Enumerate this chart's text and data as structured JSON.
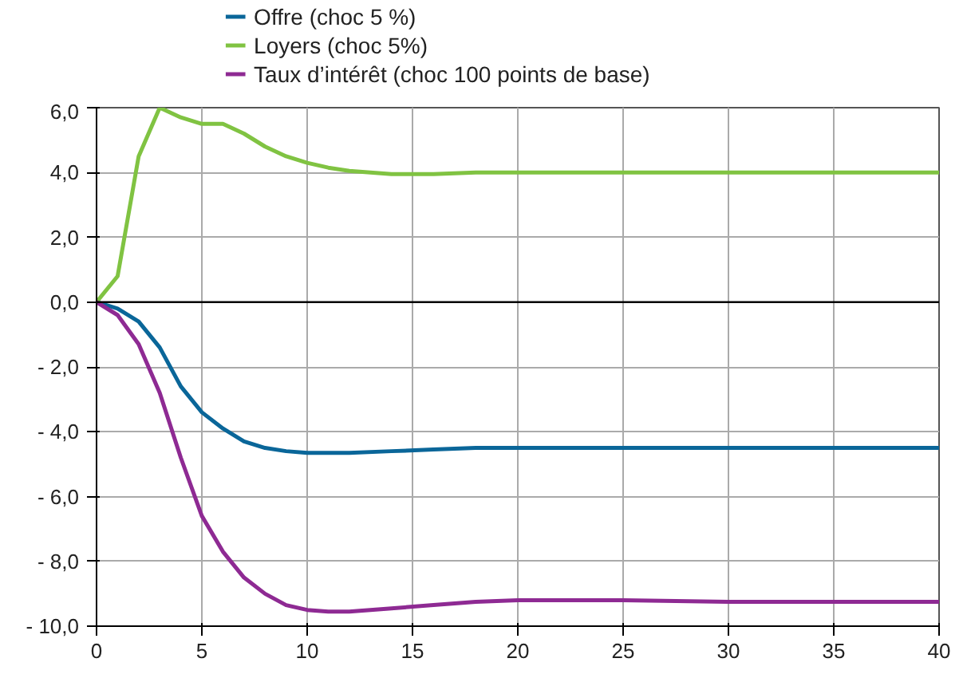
{
  "chart_data": {
    "type": "line",
    "x": [
      0,
      1,
      2,
      3,
      4,
      5,
      6,
      7,
      8,
      9,
      10,
      11,
      12,
      14,
      16,
      18,
      20,
      25,
      30,
      35,
      40
    ],
    "series": [
      {
        "name": "Offre (choc 5 %)",
        "color": "#0a6699",
        "values": [
          0,
          -0.2,
          -0.6,
          -1.4,
          -2.6,
          -3.4,
          -3.9,
          -4.3,
          -4.5,
          -4.6,
          -4.65,
          -4.65,
          -4.65,
          -4.6,
          -4.55,
          -4.5,
          -4.5,
          -4.5,
          -4.5,
          -4.5,
          -4.5
        ]
      },
      {
        "name": "Loyers (choc 5%)",
        "color": "#80c342",
        "values": [
          0,
          0.8,
          4.5,
          6.0,
          5.7,
          5.5,
          5.5,
          5.2,
          4.8,
          4.5,
          4.3,
          4.15,
          4.05,
          3.95,
          3.95,
          4.0,
          4.0,
          4.0,
          4.0,
          4.0,
          4.0
        ]
      },
      {
        "name": "Taux d’intérêt (choc 100 points de base)",
        "color": "#8e2a93",
        "values": [
          0,
          -0.4,
          -1.3,
          -2.8,
          -4.8,
          -6.6,
          -7.7,
          -8.5,
          -9.0,
          -9.35,
          -9.5,
          -9.55,
          -9.55,
          -9.45,
          -9.35,
          -9.25,
          -9.2,
          -9.2,
          -9.25,
          -9.25,
          -9.25
        ]
      }
    ],
    "xlim": [
      0,
      40
    ],
    "xticks": [
      0,
      5,
      10,
      15,
      20,
      25,
      30,
      35,
      40
    ],
    "ylim": [
      -10,
      6
    ],
    "yticks": [
      {
        "value": -10,
        "label": "- 10,0"
      },
      {
        "value": -8,
        "label": "- 8,0"
      },
      {
        "value": -6,
        "label": "- 6,0"
      },
      {
        "value": -4,
        "label": "- 4,0"
      },
      {
        "value": -2,
        "label": "- 2,0"
      },
      {
        "value": 0,
        "label": "0,0"
      },
      {
        "value": 2,
        "label": "2,0"
      },
      {
        "value": 4,
        "label": "4,0"
      },
      {
        "value": 6,
        "label": "6,0"
      }
    ],
    "ref_lines": [
      {
        "axis": "y",
        "value": 0,
        "color": "#000000"
      }
    ],
    "grid": true,
    "legend": "top left",
    "marker": "none",
    "line_style": "solid"
  }
}
